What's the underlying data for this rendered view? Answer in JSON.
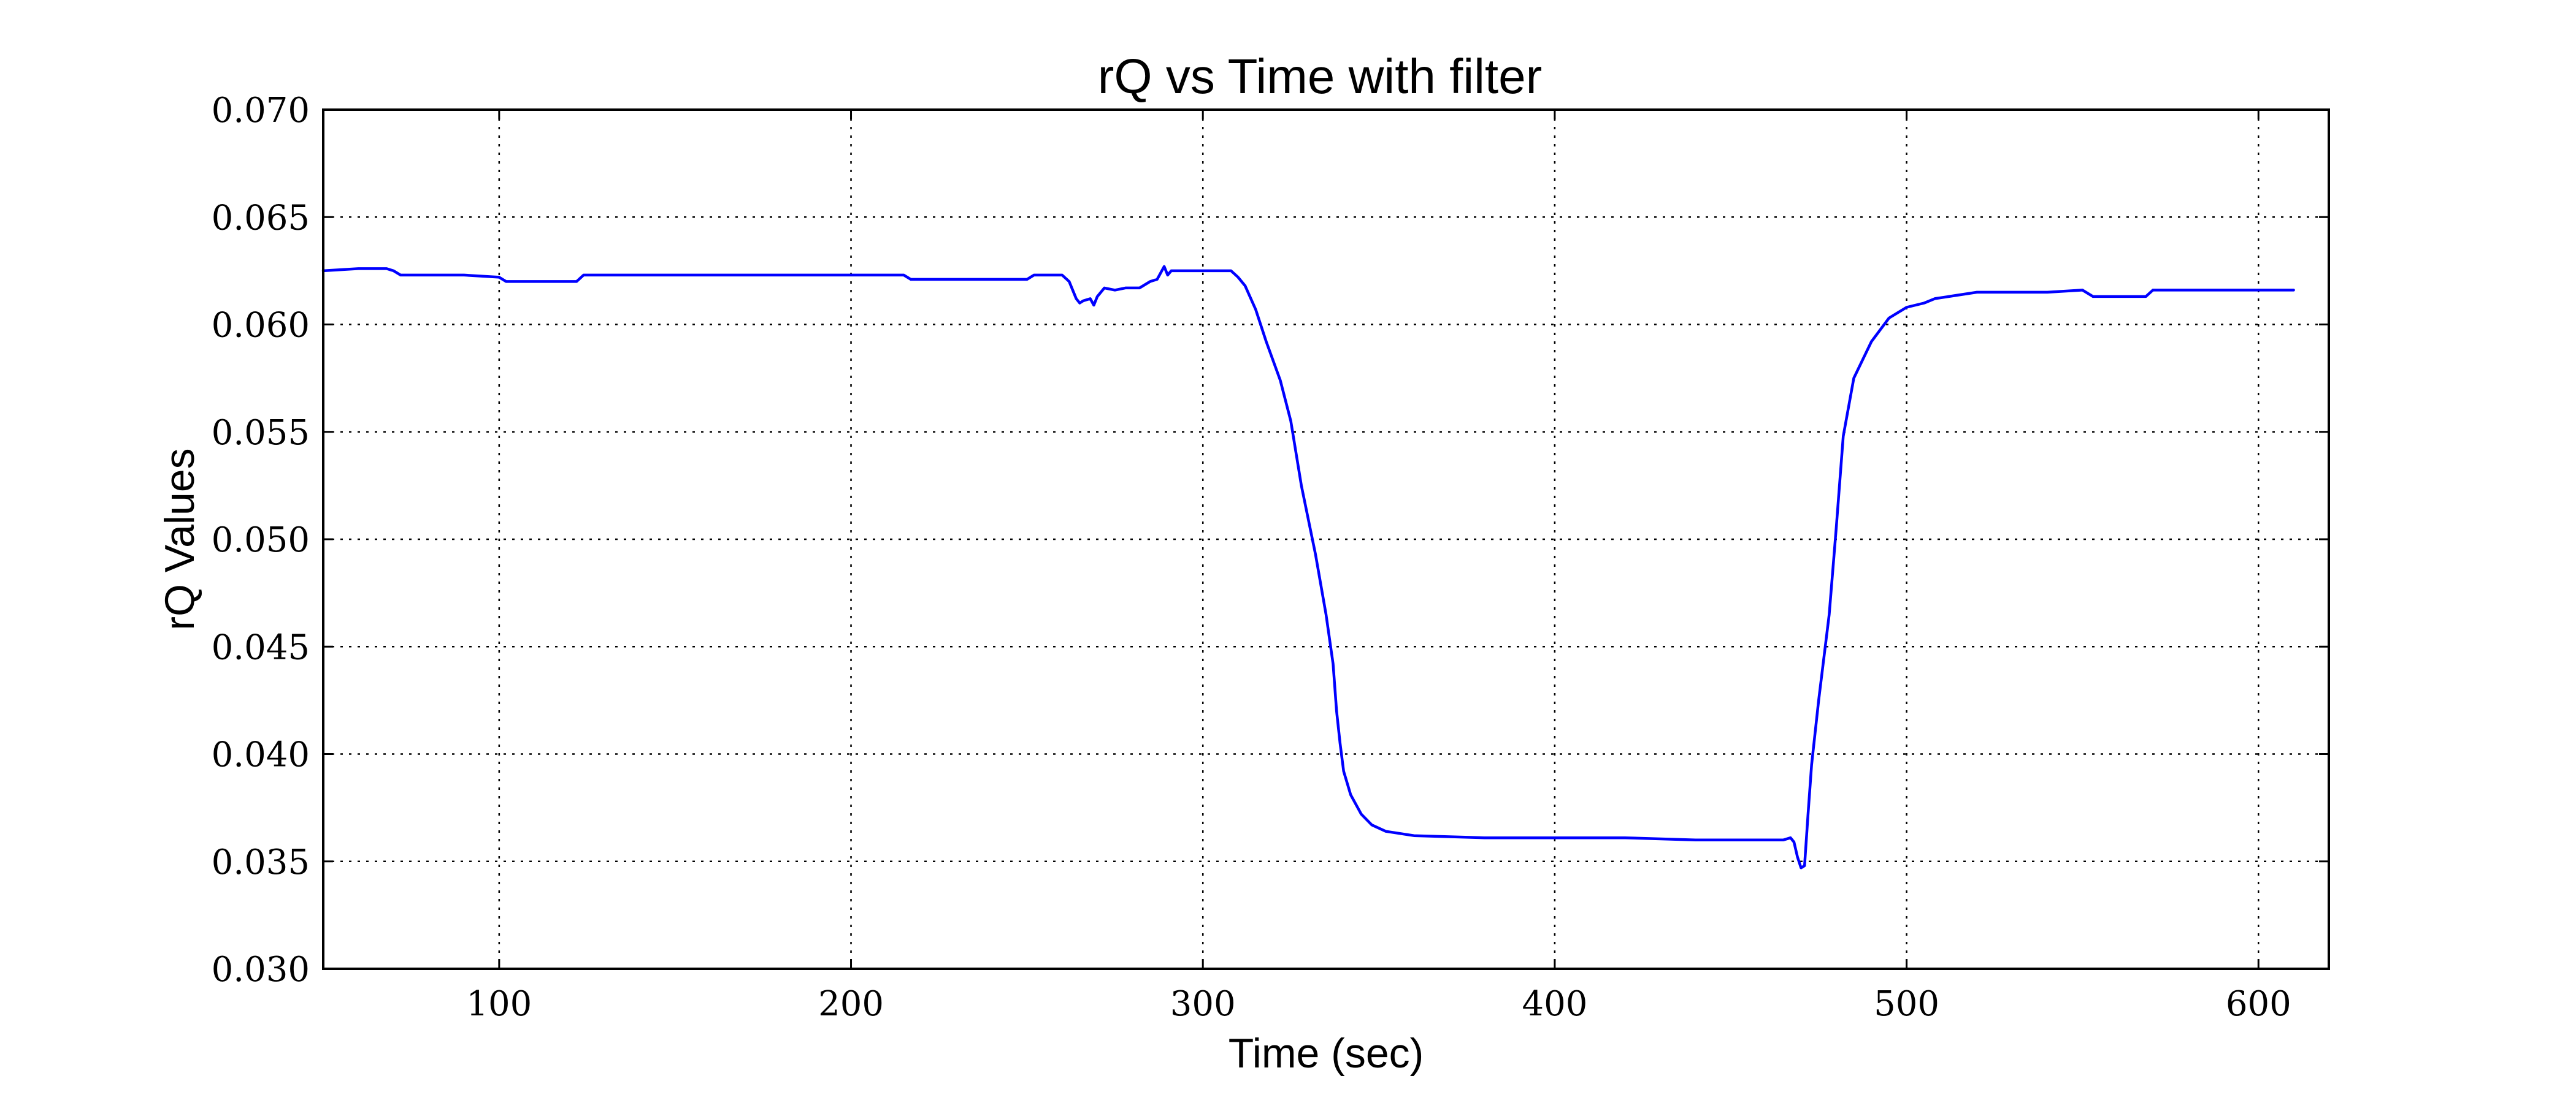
{
  "chart_data": {
    "type": "line",
    "title": "rQ vs Time with filter",
    "xlabel": "Time (sec)",
    "ylabel": "rQ Values",
    "xlim": [
      50,
      620
    ],
    "ylim": [
      0.03,
      0.07
    ],
    "x_ticks": [
      100,
      200,
      300,
      400,
      500,
      600
    ],
    "x_tick_labels": [
      "100",
      "200",
      "300",
      "400",
      "500",
      "600"
    ],
    "y_ticks": [
      0.03,
      0.035,
      0.04,
      0.045,
      0.05,
      0.055,
      0.06,
      0.065,
      0.07
    ],
    "y_tick_labels": [
      "0.030",
      "0.035",
      "0.040",
      "0.045",
      "0.050",
      "0.055",
      "0.060",
      "0.065",
      "0.070"
    ],
    "grid": true,
    "legend": null,
    "series": [
      {
        "color": "#0000ff",
        "x": [
          50,
          60,
          68,
          70,
          72,
          80,
          90,
          100,
          102,
          105,
          115,
          122,
          124,
          130,
          150,
          170,
          190,
          210,
          215,
          217,
          225,
          240,
          250,
          252,
          258,
          260,
          262,
          264,
          265,
          266,
          268,
          269,
          270,
          272,
          275,
          278,
          282,
          285,
          287,
          289,
          290,
          291,
          292,
          295,
          300,
          305,
          308,
          310,
          312,
          315,
          318,
          322,
          325,
          328,
          332,
          335,
          337,
          338,
          339,
          340,
          342,
          345,
          348,
          352,
          360,
          380,
          400,
          420,
          440,
          460,
          465,
          467,
          468,
          469,
          470,
          471,
          472,
          473,
          475,
          478,
          480,
          482,
          485,
          490,
          495,
          500,
          505,
          508,
          512,
          520,
          540,
          550,
          553,
          556,
          560,
          565,
          568,
          570,
          580,
          600,
          610
        ],
        "y": [
          0.0625,
          0.0626,
          0.0626,
          0.0625,
          0.0623,
          0.0623,
          0.0623,
          0.0622,
          0.062,
          0.062,
          0.062,
          0.062,
          0.0623,
          0.0623,
          0.0623,
          0.0623,
          0.0623,
          0.0623,
          0.0623,
          0.0621,
          0.0621,
          0.0621,
          0.0621,
          0.0623,
          0.0623,
          0.0623,
          0.062,
          0.0612,
          0.061,
          0.0611,
          0.0612,
          0.0609,
          0.0613,
          0.0617,
          0.0616,
          0.0617,
          0.0617,
          0.062,
          0.0621,
          0.0627,
          0.0623,
          0.0625,
          0.0625,
          0.0625,
          0.0625,
          0.0625,
          0.0625,
          0.0622,
          0.0618,
          0.0607,
          0.0592,
          0.0574,
          0.0555,
          0.0525,
          0.0493,
          0.0465,
          0.0442,
          0.042,
          0.0405,
          0.0392,
          0.0381,
          0.0372,
          0.0367,
          0.0364,
          0.0362,
          0.0361,
          0.0361,
          0.0361,
          0.036,
          0.036,
          0.036,
          0.0361,
          0.0359,
          0.0352,
          0.0347,
          0.0348,
          0.0372,
          0.0395,
          0.0425,
          0.0465,
          0.0505,
          0.0548,
          0.0575,
          0.0592,
          0.0603,
          0.0608,
          0.061,
          0.0612,
          0.0613,
          0.0615,
          0.0615,
          0.0616,
          0.0613,
          0.0613,
          0.0613,
          0.0613,
          0.0613,
          0.0616,
          0.0616,
          0.0616,
          0.0616
        ]
      }
    ]
  }
}
